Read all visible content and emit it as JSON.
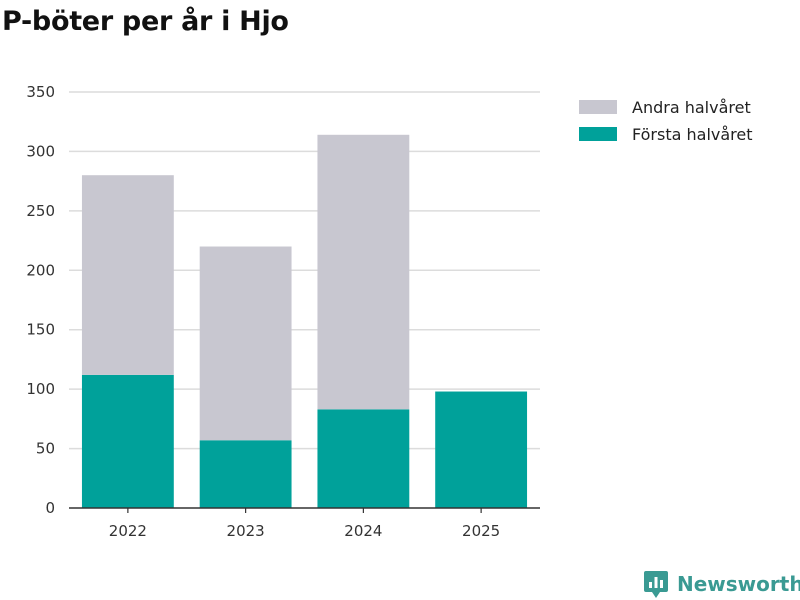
{
  "chart_data": {
    "type": "bar",
    "stacked": true,
    "title": "P-böter per år i Hjo",
    "xlabel": "",
    "ylabel": "",
    "categories": [
      "2022",
      "2023",
      "2024",
      "2025"
    ],
    "series": [
      {
        "name": "Första halvåret",
        "color": "#00a19a",
        "values": [
          112,
          57,
          83,
          98
        ]
      },
      {
        "name": "Andra halvåret",
        "color": "#c8c7d0",
        "values": [
          168,
          163,
          231,
          0
        ]
      }
    ],
    "ylim": [
      0,
      350
    ],
    "yticks": [
      0,
      50,
      100,
      150,
      200,
      250,
      300,
      350
    ],
    "grid": true,
    "legend": "top-right",
    "legend_order": [
      "Andra halvåret",
      "Första halvåret"
    ]
  },
  "branding": {
    "name": "Newsworthy",
    "color": "#3a9a93"
  }
}
